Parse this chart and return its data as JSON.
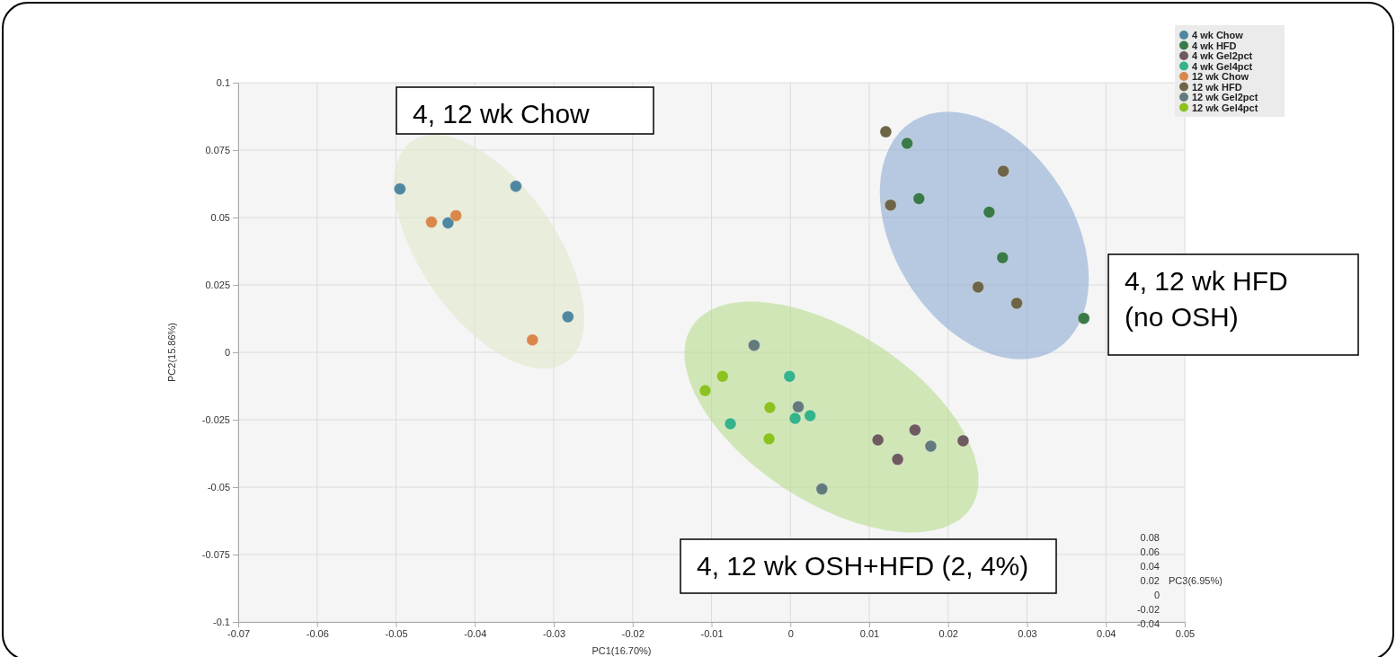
{
  "chart_data": {
    "type": "scatter",
    "xlabel": "PC1(16.70%)",
    "ylabel": "PC2(15.86%)",
    "y2label": "PC3(6.95%)",
    "xlim": [
      -0.07,
      0.05
    ],
    "xticks": [
      -0.07,
      -0.06,
      -0.05,
      -0.04,
      -0.03,
      -0.02,
      -0.01,
      0,
      0.01,
      0.02,
      0.03,
      0.04,
      0.05
    ],
    "ylim": [
      -0.1,
      0.1
    ],
    "yticks": [
      -0.1,
      -0.075,
      -0.05,
      -0.025,
      0,
      0.025,
      0.05,
      0.075,
      0.1
    ],
    "grid": true,
    "legend": "top right",
    "marker": "circle",
    "series": [
      {
        "name": "4 wk Chow",
        "color": "#4f87a0",
        "x": [
          -0.0495,
          -0.0348,
          -0.0434,
          -0.0282
        ],
        "values": [
          0.0606,
          0.0616,
          0.048,
          0.0132
        ]
      },
      {
        "name": "4 wk HFD",
        "color": "#3a7a48",
        "x": [
          0.0148,
          0.0163,
          0.0252,
          0.0269,
          0.0372
        ],
        "values": [
          0.0775,
          0.057,
          0.052,
          0.0351,
          0.0126
        ]
      },
      {
        "name": "4 wk Gel2pct",
        "color": "#6e5a5f",
        "x": [
          0.0111,
          0.0158,
          0.0136,
          0.0219
        ],
        "values": [
          -0.0325,
          -0.0288,
          -0.0397,
          -0.0328
        ]
      },
      {
        "name": "4 wk Gel4pct",
        "color": "#35b38a",
        "x": [
          -0.0001,
          -0.0076,
          0.0006,
          0.0025
        ],
        "values": [
          -0.0089,
          -0.0265,
          -0.0245,
          -0.0235
        ]
      },
      {
        "name": "12 wk Chow",
        "color": "#d9884a",
        "x": [
          -0.0455,
          -0.0424,
          -0.0327
        ],
        "values": [
          0.0483,
          0.0507,
          0.0046
        ]
      },
      {
        "name": "12 wk HFD",
        "color": "#6e6548",
        "x": [
          0.0121,
          0.0127,
          0.027,
          0.0238,
          0.0287
        ],
        "values": [
          0.0818,
          0.0546,
          0.0672,
          0.0242,
          0.0182
        ]
      },
      {
        "name": "12 wk Gel2pct",
        "color": "#627a7c",
        "x": [
          -0.0046,
          0.001,
          0.0178,
          0.004
        ],
        "values": [
          0.0026,
          -0.0202,
          -0.0348,
          -0.0507
        ]
      },
      {
        "name": "12 wk Gel4pct",
        "color": "#8cc21f",
        "x": [
          -0.0086,
          -0.0108,
          -0.0026,
          -0.0027
        ],
        "values": [
          -0.0089,
          -0.0142,
          -0.0205,
          -0.0321
        ]
      }
    ],
    "annotations": [
      "4, 12 wk Chow",
      "4, 12 wk HFD\n(no OSH)",
      "4, 12 wk OSH+HFD (2, 4%)",
      "0.08",
      "0.06",
      "0.04",
      "0.02",
      "0",
      "-0.02",
      "-0.04"
    ]
  }
}
